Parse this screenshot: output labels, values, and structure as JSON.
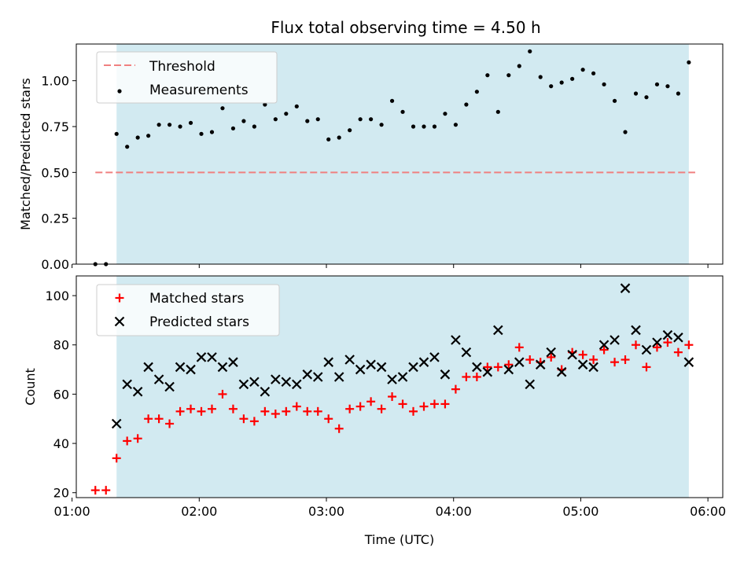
{
  "title": "Flux total observing time = 4.50 h",
  "colors": {
    "shade": "#add8e6",
    "threshold": "#f08080",
    "measurement": "#000000",
    "matched": "#ff0000",
    "predicted": "#000000"
  },
  "chart_data": [
    {
      "type": "scatter",
      "ylabel": "Matched/Predicted stars",
      "ylim": [
        0,
        1.2
      ],
      "yticks": [
        0.0,
        0.25,
        0.5,
        0.75,
        1.0
      ],
      "ytick_labels": [
        "0.00",
        "0.25",
        "0.50",
        "0.75",
        "1.00"
      ],
      "xlim": [
        "01:02",
        "06:07"
      ],
      "shaded_range": [
        "01:21",
        "05:51"
      ],
      "legend_position": "upper-left",
      "grid": false,
      "threshold": {
        "name": "Threshold",
        "value": 0.5,
        "x_range": [
          "01:11",
          "05:54"
        ],
        "style": "dashed"
      },
      "series": [
        {
          "name": "Measurements",
          "marker": "dot",
          "x": [
            "01:11",
            "01:16",
            "01:21",
            "01:26",
            "01:31",
            "01:36",
            "01:41",
            "01:46",
            "01:51",
            "01:56",
            "02:01",
            "02:06",
            "02:11",
            "02:16",
            "02:21",
            "02:26",
            "02:31",
            "02:36",
            "02:41",
            "02:46",
            "02:51",
            "02:56",
            "03:01",
            "03:06",
            "03:11",
            "03:16",
            "03:21",
            "03:26",
            "03:31",
            "03:36",
            "03:41",
            "03:46",
            "03:51",
            "03:56",
            "04:01",
            "04:06",
            "04:11",
            "04:16",
            "04:21",
            "04:26",
            "04:31",
            "04:36",
            "04:41",
            "04:46",
            "04:51",
            "04:56",
            "05:01",
            "05:06",
            "05:11",
            "05:16",
            "05:21",
            "05:26",
            "05:31",
            "05:36",
            "05:41",
            "05:46",
            "05:51"
          ],
          "y": [
            0.0,
            0.0,
            0.71,
            0.64,
            0.69,
            0.7,
            0.76,
            0.76,
            0.75,
            0.77,
            0.71,
            0.72,
            0.85,
            0.74,
            0.78,
            0.75,
            0.87,
            0.79,
            0.82,
            0.86,
            0.78,
            0.79,
            0.68,
            0.69,
            0.73,
            0.79,
            0.79,
            0.76,
            0.89,
            0.83,
            0.75,
            0.75,
            0.75,
            0.82,
            0.76,
            0.87,
            0.94,
            1.03,
            0.83,
            1.03,
            1.08,
            1.16,
            1.02,
            0.97,
            0.99,
            1.01,
            1.06,
            1.04,
            0.98,
            0.89,
            0.72,
            0.93,
            0.91,
            0.98,
            0.97,
            0.93,
            1.1
          ]
        }
      ]
    },
    {
      "type": "scatter",
      "ylabel": "Count",
      "xlabel": "Time (UTC)",
      "ylim": [
        18,
        108
      ],
      "yticks": [
        20,
        40,
        60,
        80,
        100
      ],
      "ytick_labels": [
        "20",
        "40",
        "60",
        "80",
        "100"
      ],
      "xlim": [
        "01:02",
        "06:07"
      ],
      "xticks": [
        "01:00",
        "02:00",
        "03:00",
        "04:00",
        "05:00",
        "06:00"
      ],
      "shaded_range": [
        "01:21",
        "05:51"
      ],
      "legend_position": "upper-left",
      "grid": false,
      "series": [
        {
          "name": "Matched stars",
          "marker": "plus",
          "x": [
            "01:11",
            "01:16",
            "01:21",
            "01:26",
            "01:31",
            "01:36",
            "01:41",
            "01:46",
            "01:51",
            "01:56",
            "02:01",
            "02:06",
            "02:11",
            "02:16",
            "02:21",
            "02:26",
            "02:31",
            "02:36",
            "02:41",
            "02:46",
            "02:51",
            "02:56",
            "03:01",
            "03:06",
            "03:11",
            "03:16",
            "03:21",
            "03:26",
            "03:31",
            "03:36",
            "03:41",
            "03:46",
            "03:51",
            "03:56",
            "04:01",
            "04:06",
            "04:11",
            "04:16",
            "04:21",
            "04:26",
            "04:31",
            "04:36",
            "04:41",
            "04:46",
            "04:51",
            "04:56",
            "05:01",
            "05:06",
            "05:11",
            "05:16",
            "05:21",
            "05:26",
            "05:31",
            "05:36",
            "05:41",
            "05:46",
            "05:51"
          ],
          "y": [
            21,
            21,
            34,
            41,
            42,
            50,
            50,
            48,
            53,
            54,
            53,
            54,
            60,
            54,
            50,
            49,
            53,
            52,
            53,
            55,
            53,
            53,
            50,
            46,
            54,
            55,
            57,
            54,
            59,
            56,
            53,
            55,
            56,
            56,
            62,
            67,
            67,
            71,
            71,
            72,
            79,
            74,
            73,
            75,
            70,
            77,
            76,
            74,
            78,
            73,
            74,
            80,
            71,
            79,
            81,
            77,
            80
          ]
        },
        {
          "name": "Predicted stars",
          "marker": "x",
          "x": [
            "01:21",
            "01:26",
            "01:31",
            "01:36",
            "01:41",
            "01:46",
            "01:51",
            "01:56",
            "02:01",
            "02:06",
            "02:11",
            "02:16",
            "02:21",
            "02:26",
            "02:31",
            "02:36",
            "02:41",
            "02:46",
            "02:51",
            "02:56",
            "03:01",
            "03:06",
            "03:11",
            "03:16",
            "03:21",
            "03:26",
            "03:31",
            "03:36",
            "03:41",
            "03:46",
            "03:51",
            "03:56",
            "04:01",
            "04:06",
            "04:11",
            "04:16",
            "04:21",
            "04:26",
            "04:31",
            "04:36",
            "04:41",
            "04:46",
            "04:51",
            "04:56",
            "05:01",
            "05:06",
            "05:11",
            "05:16",
            "05:21",
            "05:26",
            "05:31",
            "05:36",
            "05:41",
            "05:46",
            "05:51"
          ],
          "y": [
            48,
            64,
            61,
            71,
            66,
            63,
            71,
            70,
            75,
            75,
            71,
            73,
            64,
            65,
            61,
            66,
            65,
            64,
            68,
            67,
            73,
            67,
            74,
            70,
            72,
            71,
            66,
            67,
            71,
            73,
            75,
            68,
            82,
            77,
            71,
            69,
            86,
            70,
            73,
            64,
            72,
            77,
            69,
            76,
            72,
            71,
            80,
            82,
            103,
            86,
            78,
            81,
            84,
            83,
            73
          ]
        }
      ]
    }
  ]
}
